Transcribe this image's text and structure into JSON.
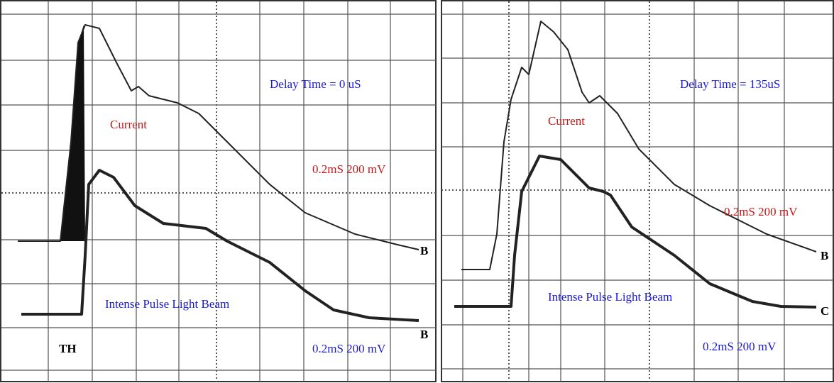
{
  "panels": [
    {
      "delay": "Delay Time = 0 uS",
      "current_label": "Current",
      "current_scale": "0.2mS 200 mV",
      "beam_label": "Intense Pulse Light Beam",
      "beam_scale": "0.2mS 200 mV",
      "trigger": "TH",
      "markers": [
        "B",
        "B"
      ]
    },
    {
      "delay": "Delay Time = 135uS",
      "current_label": "Current",
      "current_scale": "0.2mS 200 mV",
      "beam_label": "Intense Pulse Light Beam",
      "beam_scale": "0.2mS 200 mV",
      "markers": [
        "B",
        "C"
      ]
    }
  ]
}
